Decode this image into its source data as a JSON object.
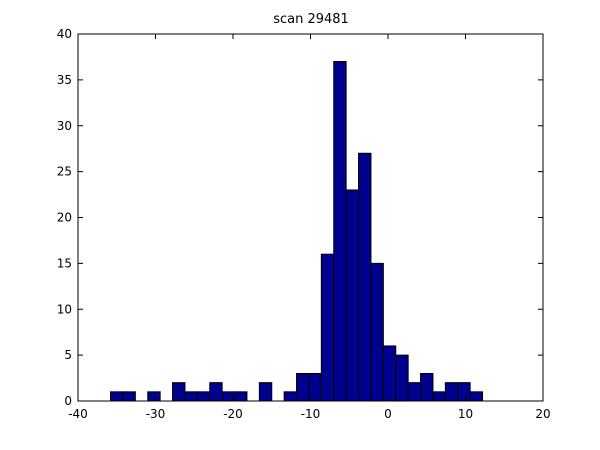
{
  "chart_data": {
    "type": "bar",
    "title": "scan 29481",
    "xlabel": "",
    "ylabel": "",
    "xlim": [
      -40,
      20
    ],
    "ylim": [
      0,
      40
    ],
    "xticks": [
      -40,
      -30,
      -20,
      -10,
      0,
      10,
      20
    ],
    "yticks": [
      0,
      5,
      10,
      15,
      20,
      25,
      30,
      35,
      40
    ],
    "xtick_labels": [
      "-40",
      "-30",
      "-20",
      "-10",
      "0",
      "10",
      "20"
    ],
    "ytick_labels": [
      "0",
      "5",
      "10",
      "15",
      "20",
      "25",
      "30",
      "35",
      "40"
    ],
    "grid": false,
    "bin_width": 1.6,
    "bins": [
      {
        "x0": -35.8,
        "value": 1
      },
      {
        "x0": -34.2,
        "value": 1
      },
      {
        "x0": -32.6,
        "value": 0
      },
      {
        "x0": -31.0,
        "value": 1
      },
      {
        "x0": -29.4,
        "value": 0
      },
      {
        "x0": -27.8,
        "value": 2
      },
      {
        "x0": -26.2,
        "value": 1
      },
      {
        "x0": -24.6,
        "value": 1
      },
      {
        "x0": -23.0,
        "value": 2
      },
      {
        "x0": -21.4,
        "value": 1
      },
      {
        "x0": -19.8,
        "value": 1
      },
      {
        "x0": -18.2,
        "value": 0
      },
      {
        "x0": -16.6,
        "value": 2
      },
      {
        "x0": -15.0,
        "value": 0
      },
      {
        "x0": -13.4,
        "value": 1
      },
      {
        "x0": -11.8,
        "value": 3
      },
      {
        "x0": -10.2,
        "value": 3
      },
      {
        "x0": -8.6,
        "value": 16
      },
      {
        "x0": -7.0,
        "value": 37
      },
      {
        "x0": -5.4,
        "value": 23
      },
      {
        "x0": -3.8,
        "value": 27
      },
      {
        "x0": -2.2,
        "value": 15
      },
      {
        "x0": -0.6,
        "value": 6
      },
      {
        "x0": 1.0,
        "value": 5
      },
      {
        "x0": 2.6,
        "value": 2
      },
      {
        "x0": 4.2,
        "value": 3
      },
      {
        "x0": 5.8,
        "value": 1
      },
      {
        "x0": 7.4,
        "value": 2
      },
      {
        "x0": 9.0,
        "value": 2
      },
      {
        "x0": 10.6,
        "value": 1
      }
    ]
  },
  "colors": {
    "bar_fill": "#00008f",
    "bar_edge": "#000000",
    "axes": "#000000",
    "background": "#ffffff"
  }
}
